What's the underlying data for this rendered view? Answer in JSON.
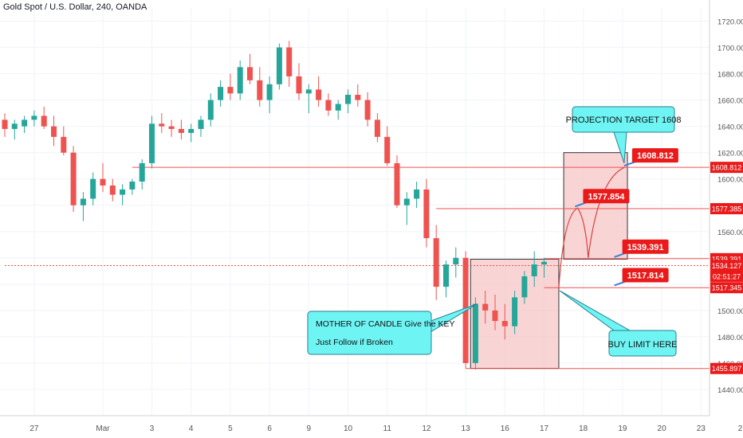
{
  "header": {
    "title": "Gold Spot / U.S. Dollar, 240, OANDA"
  },
  "colors": {
    "bull": "#26a69a",
    "bear": "#ef5350",
    "level_line": "#f05050",
    "label_red": "#ea1a1a",
    "cyan_box": "#6ff4f4",
    "zone_fill": "#f7c6c6",
    "axis_text": "#555555",
    "grid": "#f0f3fa"
  },
  "chart_data": {
    "type": "candlestick",
    "y_axis": {
      "range": [
        1420,
        1730
      ],
      "ticks": [
        "1440.000",
        "1460.000",
        "1480.000",
        "1500.000",
        "1520.000",
        "1540.000",
        "1560.000",
        "1580.000",
        "1600.000",
        "1620.000",
        "1640.000",
        "1660.000",
        "1680.000",
        "1700.000",
        "1720.000"
      ]
    },
    "x_axis": {
      "ticks": [
        {
          "label": "27",
          "i": 3
        },
        {
          "label": "Mar",
          "i": 10
        },
        {
          "label": "3",
          "i": 15
        },
        {
          "label": "4",
          "i": 19
        },
        {
          "label": "5",
          "i": 23
        },
        {
          "label": "6",
          "i": 27
        },
        {
          "label": "9",
          "i": 31
        },
        {
          "label": "10",
          "i": 35
        },
        {
          "label": "11",
          "i": 39
        },
        {
          "label": "12",
          "i": 43
        },
        {
          "label": "13",
          "i": 47
        },
        {
          "label": "16",
          "i": 51
        },
        {
          "label": "17",
          "i": 55
        },
        {
          "label": "18",
          "i": 59
        },
        {
          "label": "19",
          "i": 63
        },
        {
          "label": "20",
          "i": 67
        },
        {
          "label": "23",
          "i": 71
        },
        {
          "label": "2",
          "i": 75
        }
      ]
    },
    "ohlc": [
      [
        1645,
        1650,
        1632,
        1638
      ],
      [
        1638,
        1645,
        1630,
        1642
      ],
      [
        1640,
        1648,
        1635,
        1645
      ],
      [
        1645,
        1652,
        1640,
        1648
      ],
      [
        1648,
        1655,
        1638,
        1640
      ],
      [
        1640,
        1648,
        1625,
        1632
      ],
      [
        1632,
        1640,
        1618,
        1620
      ],
      [
        1620,
        1625,
        1575,
        1580
      ],
      [
        1580,
        1590,
        1568,
        1585
      ],
      [
        1585,
        1605,
        1580,
        1600
      ],
      [
        1600,
        1612,
        1590,
        1595
      ],
      [
        1595,
        1600,
        1583,
        1588
      ],
      [
        1588,
        1596,
        1580,
        1592
      ],
      [
        1592,
        1600,
        1588,
        1598
      ],
      [
        1598,
        1615,
        1592,
        1612
      ],
      [
        1612,
        1648,
        1608,
        1642
      ],
      [
        1642,
        1650,
        1635,
        1640
      ],
      [
        1640,
        1645,
        1632,
        1638
      ],
      [
        1638,
        1645,
        1630,
        1635
      ],
      [
        1635,
        1642,
        1628,
        1638
      ],
      [
        1638,
        1648,
        1632,
        1645
      ],
      [
        1645,
        1665,
        1640,
        1660
      ],
      [
        1660,
        1675,
        1655,
        1670
      ],
      [
        1670,
        1680,
        1660,
        1665
      ],
      [
        1665,
        1690,
        1660,
        1685
      ],
      [
        1685,
        1695,
        1672,
        1675
      ],
      [
        1675,
        1685,
        1655,
        1660
      ],
      [
        1660,
        1678,
        1650,
        1672
      ],
      [
        1672,
        1703,
        1668,
        1700
      ],
      [
        1700,
        1705,
        1670,
        1678
      ],
      [
        1678,
        1688,
        1660,
        1665
      ],
      [
        1665,
        1672,
        1650,
        1668
      ],
      [
        1668,
        1678,
        1655,
        1660
      ],
      [
        1660,
        1665,
        1648,
        1652
      ],
      [
        1652,
        1660,
        1645,
        1657
      ],
      [
        1657,
        1668,
        1650,
        1664
      ],
      [
        1664,
        1672,
        1655,
        1660
      ],
      [
        1660,
        1666,
        1640,
        1645
      ],
      [
        1645,
        1650,
        1628,
        1632
      ],
      [
        1632,
        1640,
        1610,
        1612
      ],
      [
        1612,
        1618,
        1578,
        1580
      ],
      [
        1580,
        1590,
        1565,
        1585
      ],
      [
        1585,
        1598,
        1578,
        1592
      ],
      [
        1592,
        1600,
        1548,
        1555
      ],
      [
        1555,
        1565,
        1508,
        1518
      ],
      [
        1518,
        1538,
        1510,
        1535
      ],
      [
        1535,
        1548,
        1525,
        1540
      ],
      [
        1540,
        1545,
        1456,
        1460
      ],
      [
        1460,
        1510,
        1455,
        1505
      ],
      [
        1505,
        1515,
        1490,
        1500
      ],
      [
        1500,
        1512,
        1485,
        1492
      ],
      [
        1492,
        1505,
        1478,
        1488
      ],
      [
        1488,
        1515,
        1482,
        1510
      ],
      [
        1510,
        1530,
        1505,
        1526
      ],
      [
        1526,
        1545,
        1518,
        1535
      ],
      [
        1535,
        1540,
        1525,
        1537
      ]
    ],
    "horizontal_levels": [
      {
        "label": "1608.812",
        "value": 1608.812,
        "x_from_i": 13
      },
      {
        "label": "1577.385",
        "value": 1577.385,
        "x_from_i": 44
      },
      {
        "label": "1539.391",
        "value": 1539.391,
        "x_from_i": 55
      },
      {
        "label": "1534.127",
        "value": 1534.127,
        "x_from_i": 0,
        "style": "dashed"
      },
      {
        "label": "1517.345",
        "value": 1517.345,
        "x_from_i": 55
      },
      {
        "label": "1455.897",
        "value": 1455.897,
        "x_from_i": 47
      }
    ],
    "current_price_label": "02:51:27",
    "zones": [
      {
        "name": "mother-candle-box",
        "i_from": 47.5,
        "i_to": 56.5,
        "y_from": 1456,
        "y_to": 1539
      },
      {
        "name": "projection-box",
        "i_from": 57,
        "i_to": 63.5,
        "y_from": 1539,
        "y_to": 1620
      }
    ],
    "price_callouts": [
      {
        "label": "1608.812",
        "i": 63,
        "value": 1608.812
      },
      {
        "label": "1577.854",
        "i": 58,
        "value": 1577.854
      },
      {
        "label": "1539.391",
        "i": 62,
        "value": 1539.391
      },
      {
        "label": "1517.814",
        "i": 62,
        "value": 1517.814
      }
    ],
    "annotations": [
      {
        "name": "projection-target",
        "text": "PROJECTION TARGET 1608"
      },
      {
        "name": "mother-candle",
        "text": "MOTHER OF CANDLE Give the KEY",
        "text2": "Just Follow if Broken"
      },
      {
        "name": "buy-limit",
        "text": "BUY LIMIT HERE"
      }
    ]
  }
}
